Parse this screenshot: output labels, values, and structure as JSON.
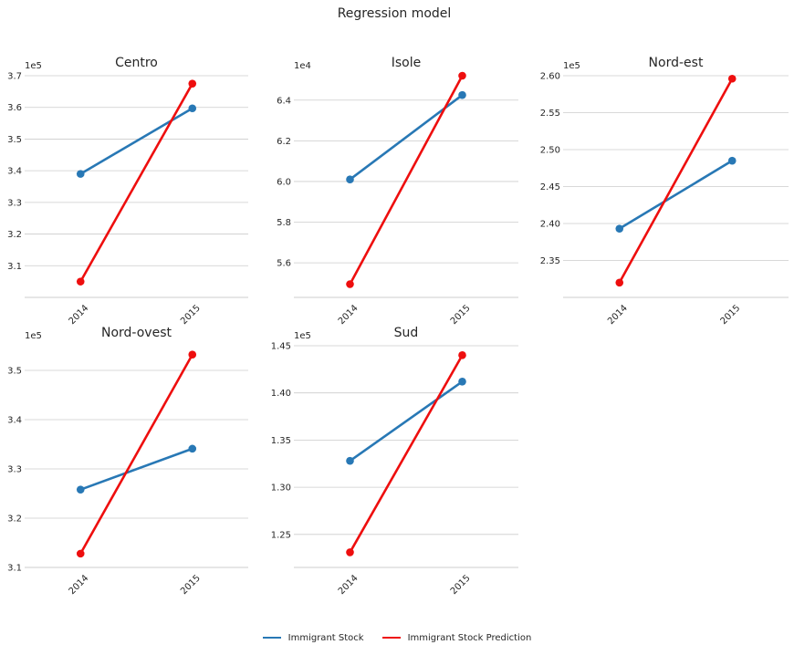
{
  "chart_data": {
    "type": "line",
    "title": "Regression model",
    "colors": {
      "series_0": "#2878b5",
      "series_1": "#ee0e0e"
    },
    "legend": {
      "placement": "bottom-center",
      "entries": [
        "Immigrant Stock",
        "Immigrant Stock Prediction"
      ]
    },
    "x": [
      "2014",
      "2015"
    ],
    "grid": true,
    "panels": [
      {
        "title": "Centro",
        "offset_label": "1e5",
        "ylim": [
          3.0,
          3.7
        ],
        "yticks": [
          3.1,
          3.2,
          3.3,
          3.4,
          3.5,
          3.6,
          3.7
        ],
        "ytick_labels": [
          "3.1",
          "3.2",
          "3.3",
          "3.4",
          "3.5",
          "3.6",
          "3.7"
        ],
        "series": [
          {
            "name": "Immigrant Stock",
            "values": [
              3.39,
              3.597
            ]
          },
          {
            "name": "Immigrant Stock Prediction",
            "values": [
              3.05,
              3.675
            ]
          }
        ]
      },
      {
        "title": "Isole",
        "offset_label": "1e4",
        "ylim": [
          5.43,
          6.52
        ],
        "yticks": [
          5.6,
          5.8,
          6.0,
          6.2,
          6.4
        ],
        "ytick_labels": [
          "5.6",
          "5.8",
          "6.0",
          "6.2",
          "6.4"
        ],
        "series": [
          {
            "name": "Immigrant Stock",
            "values": [
              6.01,
              6.425
            ]
          },
          {
            "name": "Immigrant Stock Prediction",
            "values": [
              5.495,
              6.52
            ]
          }
        ]
      },
      {
        "title": "Nord-est",
        "offset_label": "1e5",
        "ylim": [
          2.3,
          2.6
        ],
        "yticks": [
          2.35,
          2.4,
          2.45,
          2.5,
          2.55,
          2.6
        ],
        "ytick_labels": [
          "2.35",
          "2.40",
          "2.45",
          "2.50",
          "2.55",
          "2.60"
        ],
        "series": [
          {
            "name": "Immigrant Stock",
            "values": [
              2.393,
              2.485
            ]
          },
          {
            "name": "Immigrant Stock Prediction",
            "values": [
              2.32,
              2.596
            ]
          }
        ]
      },
      {
        "title": "Nord-ovest",
        "offset_label": "1e5",
        "ylim": [
          3.1,
          3.55
        ],
        "yticks": [
          3.1,
          3.2,
          3.3,
          3.4,
          3.5
        ],
        "ytick_labels": [
          "3.1",
          "3.2",
          "3.3",
          "3.4",
          "3.5"
        ],
        "series": [
          {
            "name": "Immigrant Stock",
            "values": [
              3.258,
              3.341
            ]
          },
          {
            "name": "Immigrant Stock Prediction",
            "values": [
              3.128,
              3.532
            ]
          }
        ]
      },
      {
        "title": "Sud",
        "offset_label": "1e5",
        "ylim": [
          1.215,
          1.45
        ],
        "yticks": [
          1.25,
          1.3,
          1.35,
          1.4,
          1.45
        ],
        "ytick_labels": [
          "1.25",
          "1.30",
          "1.35",
          "1.40",
          "1.45"
        ],
        "series": [
          {
            "name": "Immigrant Stock",
            "values": [
              1.328,
              1.412
            ]
          },
          {
            "name": "Immigrant Stock Prediction",
            "values": [
              1.231,
              1.44
            ]
          }
        ]
      }
    ]
  }
}
